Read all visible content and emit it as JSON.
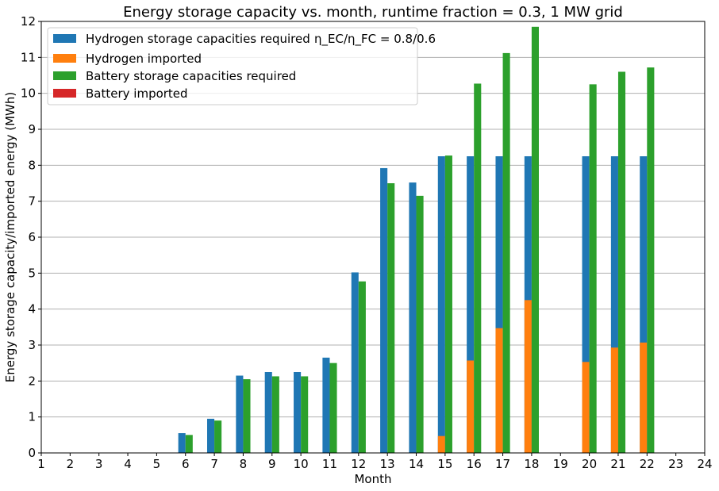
{
  "chart_data": {
    "type": "bar",
    "title": "Energy storage capacity vs. month, runtime fraction = 0.3, 1 MW grid",
    "xlabel": "Month",
    "ylabel": "Energy storage capacity/imported energy (MWh)",
    "xlim": [
      1,
      24
    ],
    "ylim": [
      0,
      12
    ],
    "grid": "horizontal",
    "legend_position": "top-left",
    "x_ticks": [
      "1",
      "2",
      "3",
      "4",
      "5",
      "6",
      "7",
      "8",
      "9",
      "10",
      "11",
      "12",
      "13",
      "14",
      "15",
      "16",
      "17",
      "18",
      "19",
      "20",
      "21",
      "22",
      "23",
      "24"
    ],
    "y_ticks": [
      "0",
      "1",
      "2",
      "3",
      "4",
      "5",
      "6",
      "7",
      "8",
      "9",
      "10",
      "11",
      "12"
    ],
    "x": [
      6,
      7,
      8,
      9,
      10,
      11,
      12,
      13,
      14,
      15,
      16,
      17,
      18,
      20,
      21,
      22
    ],
    "series": [
      {
        "name": "Hydrogen storage capacities required",
        "name_math": "η_EC/η_FC = 0.8/0.6",
        "color": "#1f77b4",
        "values": [
          0.55,
          0.95,
          2.15,
          2.25,
          2.25,
          2.65,
          5.02,
          7.92,
          7.52,
          8.25,
          8.25,
          8.25,
          8.25,
          8.25,
          8.25,
          8.25
        ]
      },
      {
        "name": "Hydrogen imported",
        "color": "#ff7f0e",
        "values": [
          0,
          0,
          0,
          0,
          0,
          0,
          0,
          0,
          0,
          0.47,
          2.57,
          3.47,
          4.25,
          2.53,
          2.93,
          3.07
        ]
      },
      {
        "name": "Battery storage capacities required",
        "color": "#2ca02c",
        "values": [
          0.5,
          0.9,
          2.05,
          2.13,
          2.13,
          2.5,
          4.77,
          7.5,
          7.15,
          8.27,
          10.27,
          11.12,
          11.85,
          10.25,
          10.6,
          10.72
        ]
      },
      {
        "name": "Battery imported",
        "color": "#d62728",
        "values": [
          0,
          0,
          0,
          0,
          0,
          0,
          0,
          0,
          0,
          0,
          0,
          0,
          0,
          0,
          0,
          0
        ]
      }
    ]
  }
}
